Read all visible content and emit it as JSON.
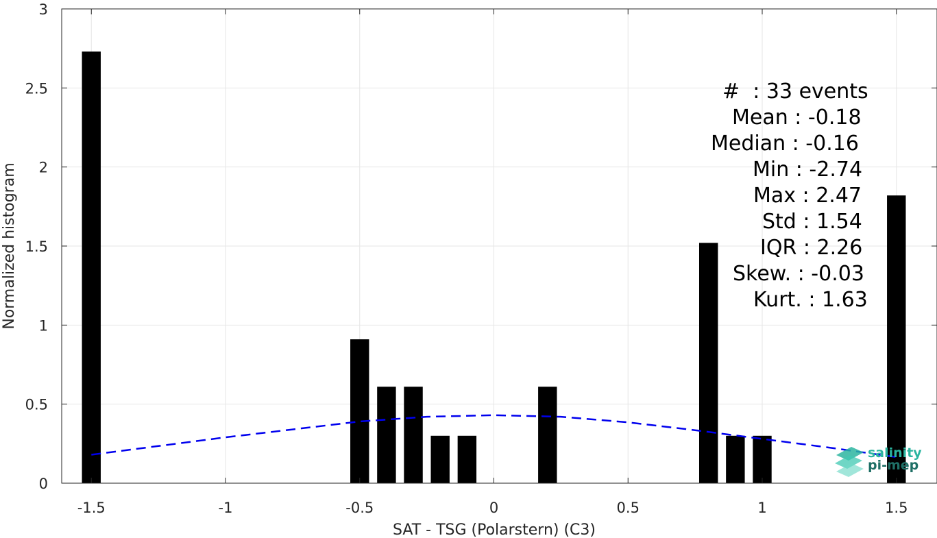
{
  "chart_data": {
    "type": "bar",
    "xlabel": "SAT - TSG (Polarstern) (C3)",
    "ylabel": "Normalized histogram",
    "xlim": [
      -1.6,
      1.6
    ],
    "ylim": [
      0,
      3
    ],
    "xticks": [
      -1.5,
      -1,
      -0.5,
      0,
      0.5,
      1,
      1.5
    ],
    "xtick_labels": [
      "-1.5",
      "-1",
      "-0.5",
      "0",
      "0.5",
      "1",
      "1.5"
    ],
    "yticks": [
      0,
      0.5,
      1,
      1.5,
      2,
      2.5,
      3
    ],
    "ytick_labels": [
      "0",
      "0.5",
      "1",
      "1.5",
      "2",
      "2.5",
      "3"
    ],
    "grid": true,
    "bar_color": "#000000",
    "bars": [
      {
        "x": -1.5,
        "y": 2.73
      },
      {
        "x": -0.5,
        "y": 0.91
      },
      {
        "x": -0.4,
        "y": 0.61
      },
      {
        "x": -0.3,
        "y": 0.61
      },
      {
        "x": -0.2,
        "y": 0.3
      },
      {
        "x": -0.1,
        "y": 0.3
      },
      {
        "x": 0.2,
        "y": 0.61
      },
      {
        "x": 0.8,
        "y": 1.52
      },
      {
        "x": 0.9,
        "y": 0.3
      },
      {
        "x": 1.0,
        "y": 0.3
      },
      {
        "x": 1.5,
        "y": 1.82
      }
    ],
    "fit_curve": {
      "style": "dashed",
      "color": "#0000ee",
      "x": [
        -1.5,
        -1.25,
        -1.0,
        -0.75,
        -0.5,
        -0.25,
        0.0,
        0.25,
        0.5,
        0.75,
        1.0,
        1.25,
        1.5
      ],
      "y": [
        0.18,
        0.235,
        0.29,
        0.34,
        0.39,
        0.42,
        0.43,
        0.42,
        0.385,
        0.335,
        0.28,
        0.225,
        0.165
      ]
    }
  },
  "stats": {
    "lines": [
      "#  : 33 events",
      "Mean : -0.18",
      "Median : -0.16",
      "Min : -2.74",
      "Max : 2.47",
      "Std : 1.54",
      "IQR : 2.26",
      "Skew. : -0.03",
      "Kurt. : 1.63"
    ]
  },
  "logo": {
    "line1": "salinity",
    "line2": "pi-mep",
    "color1": "#2bb5a0",
    "color2": "#1f6f66"
  }
}
